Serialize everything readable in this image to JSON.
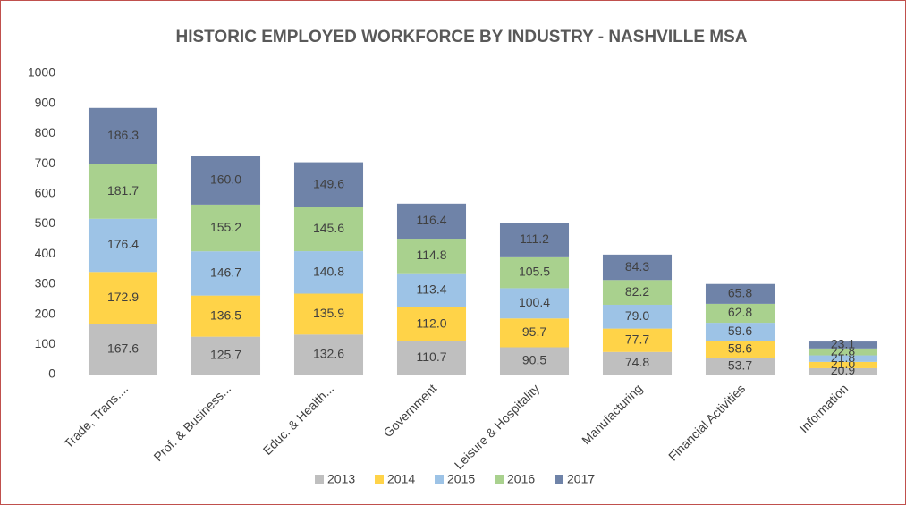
{
  "chart_data": {
    "type": "stacked_bar",
    "title": "HISTORIC EMPLOYED WORKFORCE BY INDUSTRY - NASHVILLE MSA",
    "categories": [
      "Trade, Trans....",
      "Prof. & Business...",
      "Educ. & Health...",
      "Government",
      "Leisure & Hospitality",
      "Manufacturing",
      "Financial Activities",
      "Information"
    ],
    "series": [
      {
        "name": "2013",
        "color": "#bfbfbf",
        "values": [
          167.6,
          125.7,
          132.6,
          110.7,
          90.5,
          74.8,
          53.7,
          20.9
        ]
      },
      {
        "name": "2014",
        "color": "#ffd348",
        "values": [
          172.9,
          136.5,
          135.9,
          112.0,
          95.7,
          77.7,
          58.6,
          21.0
        ],
        "value_labels": [
          "172.9",
          "136.5",
          "135.9",
          "112.0",
          "95.7",
          "77.7",
          "58.6",
          "21.0"
        ]
      },
      {
        "name": "2015",
        "color": "#9dc3e6",
        "values": [
          176.4,
          146.7,
          140.8,
          113.4,
          100.4,
          79.0,
          59.6,
          21.8
        ],
        "value_labels": [
          "176.4",
          "146.7",
          "140.8",
          "113.4",
          "100.4",
          "79.0",
          "59.6",
          "21.8"
        ]
      },
      {
        "name": "2016",
        "color": "#a9d18e",
        "values": [
          181.7,
          155.2,
          145.6,
          114.8,
          105.5,
          82.2,
          62.8,
          22.8
        ]
      },
      {
        "name": "2017",
        "color": "#6f83a8",
        "values": [
          186.3,
          160.0,
          149.6,
          116.4,
          111.2,
          84.3,
          65.8,
          23.1
        ],
        "value_labels": [
          "186.3",
          "160.0",
          "149.6",
          "116.4",
          "111.2",
          "84.3",
          "65.8",
          "23.1"
        ]
      }
    ],
    "ylim": [
      0,
      1000
    ],
    "yticks": [
      0,
      100,
      200,
      300,
      400,
      500,
      600,
      700,
      800,
      900,
      1000
    ],
    "grid": false,
    "legend": "bottom"
  }
}
